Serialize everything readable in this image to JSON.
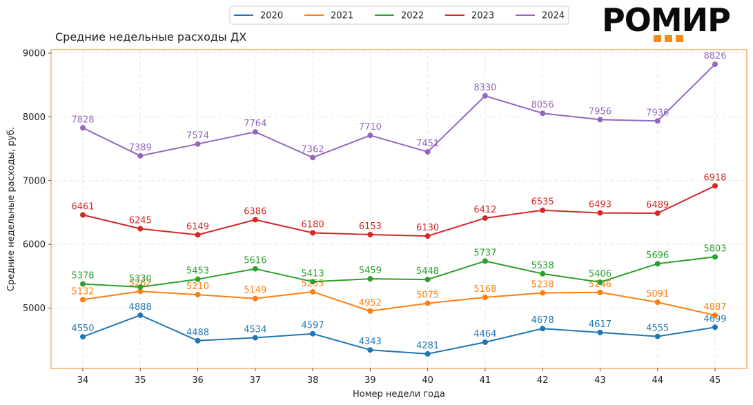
{
  "logo": {
    "text": "РОМИР",
    "accent": "#f08a1c"
  },
  "chart_data": {
    "type": "line",
    "title": "Средние недельные расходы ДХ",
    "xlabel": "Номер недели года",
    "ylabel": "Средние недельные расходы, руб.",
    "x": [
      34,
      35,
      36,
      37,
      38,
      39,
      40,
      41,
      42,
      43,
      44,
      45
    ],
    "ylim": [
      4000,
      9000
    ],
    "yticks": [
      5000,
      6000,
      7000,
      8000,
      9000
    ],
    "grid": true,
    "legend_position": "top-center",
    "frame_color": "#f08a1c",
    "series": [
      {
        "name": "2020",
        "color": "#1f77b4",
        "values": [
          4550,
          4888,
          4488,
          4534,
          4597,
          4343,
          4281,
          4464,
          4678,
          4617,
          4555,
          4699
        ]
      },
      {
        "name": "2021",
        "color": "#ff7f0e",
        "values": [
          5132,
          5262,
          5210,
          5149,
          5255,
          4952,
          5075,
          5168,
          5238,
          5246,
          5091,
          4887
        ]
      },
      {
        "name": "2022",
        "color": "#2ca02c",
        "values": [
          5378,
          5330,
          5453,
          5616,
          5413,
          5459,
          5448,
          5737,
          5538,
          5406,
          5696,
          5803
        ]
      },
      {
        "name": "2023",
        "color": "#d62728",
        "values": [
          6461,
          6245,
          6149,
          6386,
          6180,
          6153,
          6130,
          6412,
          6535,
          6493,
          6489,
          6918
        ]
      },
      {
        "name": "2024",
        "color": "#9467bd",
        "values": [
          7828,
          7389,
          7574,
          7764,
          7362,
          7710,
          7451,
          8330,
          8056,
          7956,
          7936,
          8826
        ]
      }
    ]
  }
}
